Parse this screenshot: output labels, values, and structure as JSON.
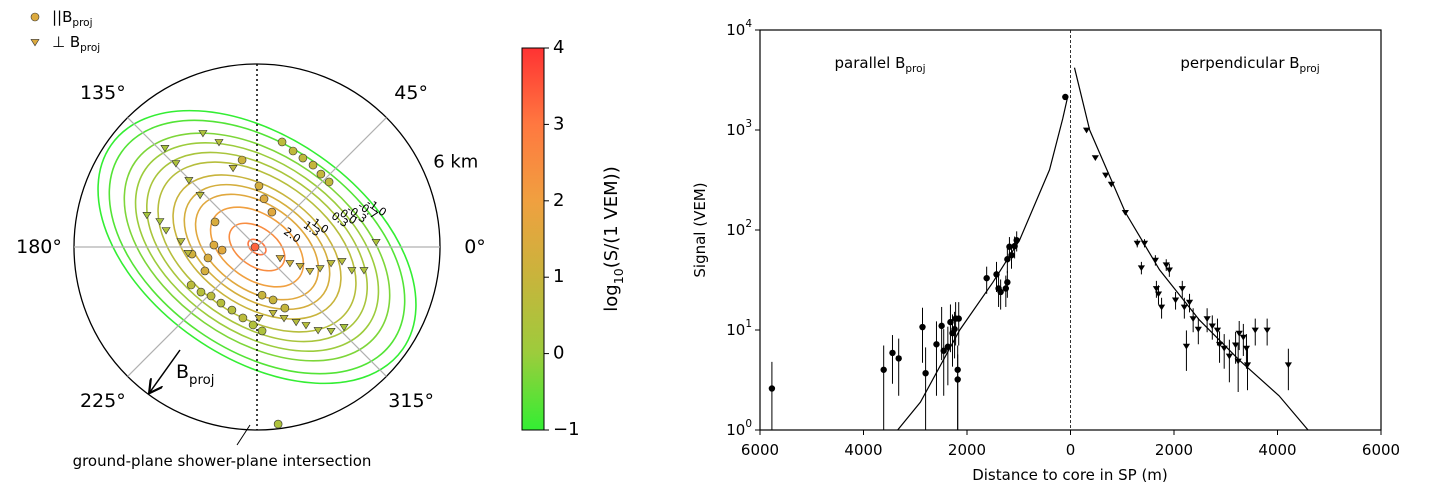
{
  "chart_data": [
    {
      "type": "polar-scatter",
      "rlim": [
        0,
        6.5
      ],
      "rticks": [
        {
          "value": 6,
          "label": "6 km"
        }
      ],
      "thetaticks": [
        {
          "value": 0,
          "label": "0°"
        },
        {
          "value": 45,
          "label": "45°"
        },
        {
          "value": 135,
          "label": "135°"
        },
        {
          "value": 180,
          "label": "180°"
        },
        {
          "value": 225,
          "label": "225°"
        },
        {
          "value": 315,
          "label": "315°"
        }
      ],
      "series": [
        {
          "name": "||B_{proj}",
          "marker": "circle",
          "x": [
            -0.07,
            0.89,
            1.28,
            1.63,
            1.99,
            2.27,
            2.56,
            -0.53,
            0.07,
            0.25,
            0.53,
            -1.49,
            -1.53,
            -1.74,
            -1.24,
            -2.31,
            -1.85,
            -2.34,
            -1.99,
            -1.63,
            -1.28,
            -0.89,
            -0.5,
            -0.14,
            0.18,
            0.57,
            0.99,
            0.18,
            0.75
          ],
          "y": [
            0,
            3.73,
            3.41,
            3.16,
            2.91,
            2.59,
            2.31,
            3.09,
            2.17,
            1.71,
            1.24,
            0.89,
            0.07,
            -0.39,
            -0.11,
            -0.25,
            -0.85,
            -1.35,
            -1.6,
            -1.74,
            -1.99,
            -2.24,
            -2.52,
            -2.77,
            -1.71,
            -1.88,
            -2.17,
            -2.98,
            -6.29
          ],
          "values": [
            3.3,
            0.7,
            0.8,
            0.8,
            0.9,
            0.9,
            0.8,
            1.1,
            1.3,
            1.5,
            1.6,
            1.4,
            1.5,
            1.4,
            1.6,
            1.2,
            1.3,
            0.7,
            0.6,
            0.7,
            0.6,
            0.6,
            0.7,
            0.5,
            1.0,
            1.0,
            0.9,
            0.4,
            0.4
          ]
        },
        {
          "name": "⊥ B_{proj}",
          "marker": "triangle",
          "x": [
            -1.92,
            -3.27,
            -2.88,
            -2.42,
            -2.02,
            -1.35,
            -0.85,
            -3.91,
            -3.45,
            -3.23,
            -2.7,
            -2.45,
            0.82,
            1.17,
            1.53,
            1.88,
            2.24,
            2.63,
            3.02,
            3.37,
            3.8,
            4.23,
            0.07,
            0.57,
            0.96,
            1.39,
            1.74,
            2.17,
            2.63,
            3.09
          ],
          "y": [
            4.05,
            3.52,
            2.98,
            2.38,
            1.85,
            3.73,
            2.81,
            1.14,
            0.92,
            0.6,
            0.21,
            -0.21,
            -0.39,
            -0.57,
            -0.67,
            -0.85,
            -0.75,
            -0.57,
            -0.5,
            -0.82,
            -0.82,
            0.18,
            -2.52,
            -2.34,
            -2.52,
            -2.66,
            -2.77,
            -2.95,
            -2.98,
            -2.84
          ],
          "values": [
            0.4,
            0.3,
            0.4,
            0.5,
            0.6,
            0.6,
            0.8,
            0.2,
            0.3,
            0.4,
            0.6,
            0.7,
            1.3,
            1.1,
            1.0,
            0.9,
            0.8,
            0.7,
            0.6,
            0.5,
            0.4,
            0.4,
            0.9,
            0.8,
            0.7,
            0.6,
            0.6,
            0.5,
            0.4,
            0.3
          ]
        }
      ],
      "contour_levels": [
        3.0,
        2.5,
        2.0,
        1.6,
        1.3,
        1.0,
        0.6,
        0.3,
        0.0,
        -0.3,
        -0.7,
        -1.0
      ],
      "contour_labels": [
        null,
        null,
        "2.0",
        null,
        "1.3",
        "1.0",
        null,
        "0.3",
        "0.0",
        "-0.3",
        "-0.7",
        "-1.0"
      ],
      "colorbar": {
        "label": "log_{10}(S/(1 VEM))",
        "clim": [
          -1,
          4
        ],
        "ticks": [
          {
            "value": -1,
            "label": "−1"
          },
          0,
          1,
          2,
          3,
          4
        ],
        "colormap": [
          "#33ee33",
          "#9ccc3c",
          "#c8b43c",
          "#f0a040",
          "#ff7840",
          "#ff3333"
        ]
      },
      "annotations": [
        "B_{proj}",
        "ground-plane shower-plane intersection"
      ]
    },
    {
      "type": "scatter",
      "xlabel": "Distance to core in SP (m)",
      "ylabel": "Signal (VEM)",
      "xlim": [
        -6000,
        6000
      ],
      "xticks": [
        {
          "value": -6000,
          "label": "6000"
        },
        {
          "value": -4000,
          "label": "4000"
        },
        {
          "value": -2000,
          "label": "2000"
        },
        0,
        2000,
        4000,
        6000
      ],
      "ylim": [
        1,
        10000
      ],
      "yscale": "log",
      "yticks": [
        {
          "value": 1,
          "label": "10^{0}"
        },
        {
          "value": 10,
          "label": "10^{1}"
        },
        {
          "value": 100,
          "label": "10^{2}"
        },
        {
          "value": 1000,
          "label": "10^{3}"
        },
        {
          "value": 10000,
          "label": "10^{4}"
        }
      ],
      "vline": 0,
      "annotations": [
        "parallel B_{proj}",
        "perpendicular B_{proj}"
      ],
      "series": [
        {
          "marker": "circle",
          "color": "#000000",
          "x": [
            -5770,
            -3610,
            -3440,
            -3320,
            -2860,
            -2800,
            -2590,
            -2490,
            -2450,
            -2370,
            -2320,
            -2280,
            -2240,
            -2220,
            -2180,
            -2180,
            -2160,
            -1620,
            -1430,
            -1390,
            -1350,
            -1250,
            -1220,
            -1220,
            -1180,
            -1140,
            -1080,
            -1040,
            -100
          ],
          "values": [
            2.6,
            4.0,
            5.9,
            5.2,
            10.7,
            3.7,
            7.2,
            11,
            6.2,
            6.8,
            12,
            9.3,
            10.2,
            13,
            4.0,
            3.2,
            13,
            33,
            36,
            26,
            24,
            26,
            30,
            51,
            68,
            56,
            69,
            79,
            2140
          ],
          "errors": [
            2.2,
            3,
            3,
            3,
            6,
            3,
            5,
            6,
            4,
            4,
            6,
            5,
            5,
            6,
            3,
            2.5,
            6,
            10,
            12,
            9,
            8,
            9,
            9,
            14,
            17,
            15,
            17,
            18,
            60
          ]
        },
        {
          "marker": "triangle",
          "color": "#000000",
          "x": [
            310,
            480,
            680,
            790,
            1060,
            1290,
            1430,
            1370,
            1640,
            1850,
            1660,
            1700,
            1760,
            1910,
            2030,
            2160,
            2200,
            2240,
            2300,
            2370,
            2470,
            2640,
            2740,
            2840,
            2880,
            2970,
            3070,
            3190,
            3240,
            3260,
            3340,
            3400,
            3420,
            3570,
            3800,
            4210
          ],
          "values": [
            1000,
            530,
            355,
            288,
            150,
            74,
            74,
            42,
            50,
            45,
            26,
            23,
            17,
            40,
            20,
            26,
            17,
            6.9,
            19,
            13,
            10.2,
            13,
            11,
            10,
            7.2,
            6.6,
            5.5,
            7.1,
            4.9,
            9.3,
            8.5,
            6.6,
            4.5,
            10,
            10,
            4.5
          ],
          "errors": [
            25,
            15,
            12,
            10,
            8,
            7,
            7,
            6,
            6,
            6,
            5,
            5,
            4,
            6,
            4,
            5,
            4,
            3,
            4,
            3.5,
            3,
            3.5,
            3,
            3,
            2.5,
            2.5,
            2.5,
            2.5,
            2.5,
            3,
            3,
            2.5,
            2,
            3,
            3,
            2
          ]
        },
        {
          "marker": "line",
          "color": "#000000",
          "x": [
            -3340,
            -2900,
            -2140,
            -1500,
            -985,
            -405,
            -150,
            -50
          ],
          "values": [
            1,
            1.9,
            10,
            30,
            79,
            400,
            1300,
            2200
          ]
        },
        {
          "marker": "line",
          "color": "#000000",
          "x": [
            77,
            370,
            1060,
            1720,
            2490,
            3260,
            4030,
            4590
          ],
          "values": [
            4200,
            1000,
            150,
            40,
            12.6,
            5,
            2.2,
            1
          ]
        }
      ]
    }
  ]
}
